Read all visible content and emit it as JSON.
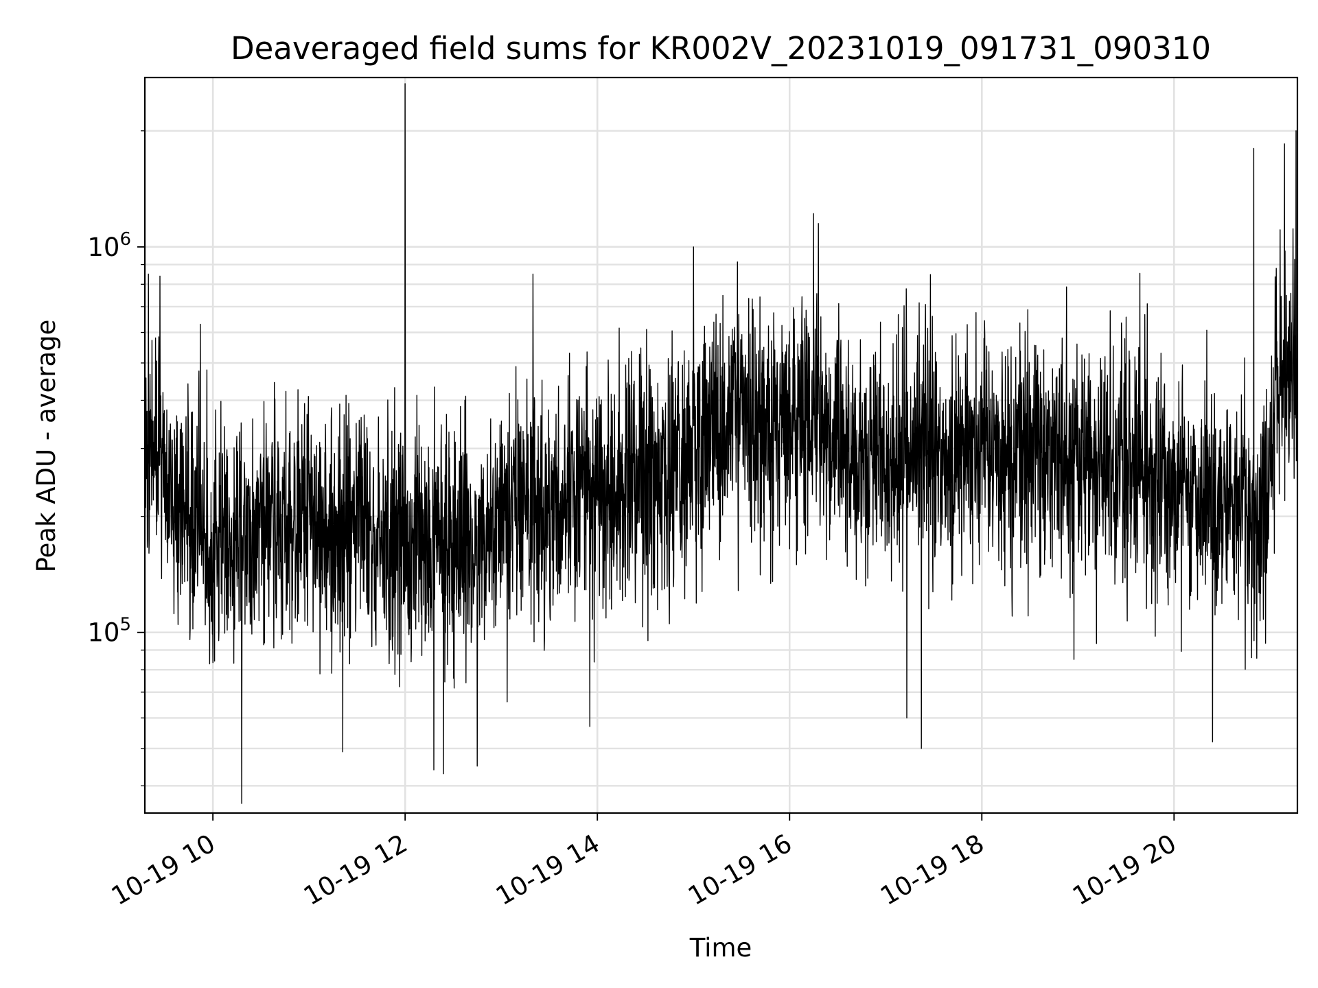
{
  "chart_data": {
    "type": "line",
    "title": "Deaveraged field sums for KR002V_20231019_091731_090310",
    "xlabel": "Time",
    "ylabel": "Peak ADU - average",
    "x_axis": "time",
    "y_scale": "log",
    "xlim": [
      "2023-10-19 09:17:31",
      "2023-10-19 21:17:00"
    ],
    "ylim": [
      34000,
      2750000
    ],
    "xticks": [
      {
        "label": "10-19 10",
        "hour": 10
      },
      {
        "label": "10-19 12",
        "hour": 12
      },
      {
        "label": "10-19 14",
        "hour": 14
      },
      {
        "label": "10-19 16",
        "hour": 16
      },
      {
        "label": "10-19 18",
        "hour": 18
      },
      {
        "label": "10-19 20",
        "hour": 20
      }
    ],
    "yticks": [
      {
        "base": "10",
        "exponent": "5",
        "value": 100000
      },
      {
        "base": "10",
        "exponent": "6",
        "value": 1000000
      }
    ],
    "grid": true,
    "legend": "none",
    "line_color": "#000000",
    "grid_color": "#e2e2e2",
    "series": [
      {
        "hour": [
          9.3,
          9.4,
          9.45,
          9.6,
          9.8,
          10.0,
          10.3,
          10.5,
          10.8,
          11.0,
          11.2,
          11.4,
          11.6,
          11.8,
          12.0,
          12.05,
          12.3,
          12.5,
          12.75,
          13.0,
          13.2,
          13.4,
          13.6,
          13.92,
          14.2,
          14.5,
          14.8,
          15.0,
          15.25,
          15.4,
          15.6,
          15.8,
          16.0,
          16.2,
          16.26,
          16.4,
          16.6,
          16.8,
          17.0,
          17.22,
          17.4,
          17.6,
          17.8,
          18.0,
          18.2,
          18.4,
          18.6,
          18.8,
          19.0,
          19.2,
          19.4,
          19.6,
          19.8,
          20.0,
          20.2,
          20.4,
          20.6,
          20.8,
          20.95,
          21.0,
          21.1,
          21.2,
          21.28
        ],
        "median": [
          260000,
          300000,
          280000,
          220000,
          200000,
          180000,
          170000,
          190000,
          180000,
          200000,
          160000,
          200000,
          190000,
          170000,
          190000,
          160000,
          190000,
          170000,
          160000,
          200000,
          230000,
          210000,
          220000,
          230000,
          240000,
          260000,
          270000,
          300000,
          330000,
          360000,
          340000,
          350000,
          380000,
          360000,
          390000,
          330000,
          300000,
          280000,
          270000,
          280000,
          290000,
          270000,
          300000,
          290000,
          280000,
          280000,
          300000,
          280000,
          270000,
          260000,
          270000,
          280000,
          260000,
          250000,
          240000,
          220000,
          220000,
          200000,
          200000,
          320000,
          420000,
          430000,
          450000
        ],
        "highs": [
          {
            "hour": 9.33,
            "value": 850000
          },
          {
            "hour": 9.45,
            "value": 840000
          },
          {
            "hour": 12.0,
            "value": 2650000
          },
          {
            "hour": 13.33,
            "value": 850000
          },
          {
            "hour": 15.0,
            "value": 1000000
          },
          {
            "hour": 16.25,
            "value": 1220000
          },
          {
            "hour": 16.3,
            "value": 1150000
          },
          {
            "hour": 20.83,
            "value": 1800000
          },
          {
            "hour": 21.15,
            "value": 1850000
          },
          {
            "hour": 21.27,
            "value": 2000000
          }
        ],
        "lows": [
          {
            "hour": 10.3,
            "value": 36000
          },
          {
            "hour": 11.35,
            "value": 49000
          },
          {
            "hour": 12.3,
            "value": 44000
          },
          {
            "hour": 12.4,
            "value": 43000
          },
          {
            "hour": 12.75,
            "value": 45000
          },
          {
            "hour": 13.92,
            "value": 57000
          },
          {
            "hour": 17.37,
            "value": 50000
          },
          {
            "hour": 17.22,
            "value": 60000
          },
          {
            "hour": 20.4,
            "value": 52000
          }
        ]
      }
    ]
  }
}
